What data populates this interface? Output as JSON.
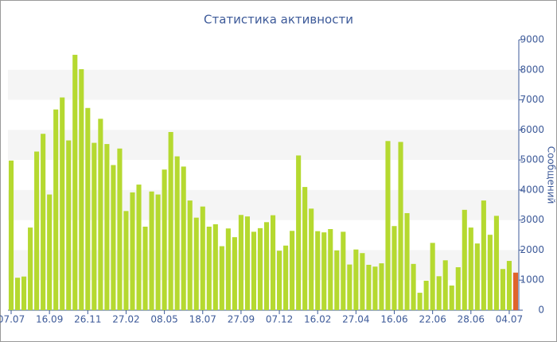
{
  "chart_data": {
    "type": "bar",
    "title": "Статистика активности",
    "y_label": "Сообщений",
    "categories": [
      "07.07",
      null,
      null,
      null,
      null,
      null,
      "16.09",
      null,
      null,
      null,
      null,
      null,
      "26.11",
      null,
      null,
      null,
      null,
      null,
      "27.02",
      null,
      null,
      null,
      null,
      null,
      "08.05",
      null,
      null,
      null,
      null,
      null,
      "18.07",
      null,
      null,
      null,
      null,
      null,
      "27.09",
      null,
      null,
      null,
      null,
      null,
      "07.12",
      null,
      null,
      null,
      null,
      null,
      "16.02",
      null,
      null,
      null,
      null,
      null,
      "27.04",
      null,
      null,
      null,
      null,
      null,
      "16.06",
      null,
      null,
      null,
      null,
      null,
      "22.06",
      null,
      null,
      null,
      null,
      null,
      "28.06",
      null,
      null,
      null,
      null,
      null,
      "04.07",
      null
    ],
    "values": [
      4980,
      1080,
      1120,
      2750,
      5280,
      5870,
      3850,
      6680,
      7080,
      5650,
      8500,
      8020,
      6730,
      5570,
      6370,
      5530,
      4830,
      5380,
      3300,
      3920,
      4180,
      2780,
      3950,
      3850,
      4680,
      5930,
      5120,
      4780,
      3650,
      3080,
      3450,
      2780,
      2860,
      2130,
      2720,
      2430,
      3170,
      3120,
      2610,
      2730,
      2930,
      3160,
      1980,
      2150,
      2640,
      5150,
      4100,
      3380,
      2630,
      2590,
      2700,
      1990,
      2610,
      1520,
      2020,
      1900,
      1510,
      1450,
      1560,
      5630,
      2800,
      5600,
      3230,
      1540,
      580,
      980,
      2240,
      1130,
      1660,
      820,
      1430,
      3340,
      2750,
      2220,
      3650,
      2510,
      3140,
      1370,
      1640,
      1250
    ],
    "color": "#b5d930",
    "last_color": "#e0642c",
    "ylim": [
      0,
      9000
    ],
    "yticks": [
      0,
      1000,
      2000,
      3000,
      4000,
      5000,
      6000,
      7000,
      8000,
      9000
    ],
    "bands": true
  }
}
